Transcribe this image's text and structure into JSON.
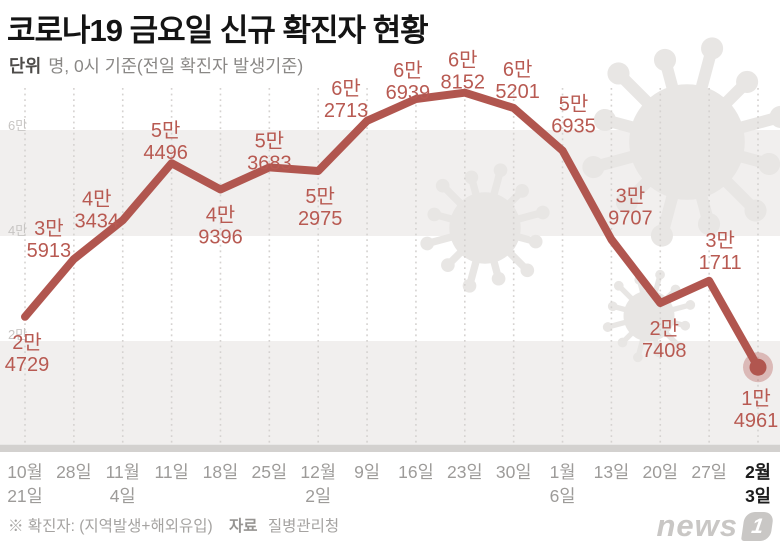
{
  "title": "코로나19 금요일 신규 확진자 현황",
  "subtitle": {
    "label": "단위",
    "text": "명, 0시 기준(전일 확진자 발생기준)"
  },
  "footer": {
    "note": "※ 확진자: (지역발생+해외유입)",
    "source_label": "자료",
    "source": "질병관리청"
  },
  "logo": {
    "text": "news",
    "badge": "1"
  },
  "colors": {
    "line": "#b1564f",
    "point_label": "#b85a52",
    "band": "#f1efee",
    "axis_strip": "#d3d1cf",
    "grid": "#d5d2d0",
    "y_tick": "#c7c5c3",
    "x_tick": "#9d9b99",
    "x_tick_active": "#1c1c1c",
    "watermark": "#e8e6e4"
  },
  "chart_data": {
    "type": "line",
    "title": "코로나19 금요일 신규 확진자 현황",
    "unit": "명",
    "basis": "0시 기준(전일 확진자 발생기준)",
    "x": [
      [
        "10월",
        "21일"
      ],
      [
        "28일"
      ],
      [
        "11월",
        "4일"
      ],
      [
        "11일"
      ],
      [
        "18일"
      ],
      [
        "25일"
      ],
      [
        "12월",
        "2일"
      ],
      [
        "9일"
      ],
      [
        "16일"
      ],
      [
        "23일"
      ],
      [
        "30일"
      ],
      [
        "1월",
        "6일"
      ],
      [
        "13일"
      ],
      [
        "20일"
      ],
      [
        "27일"
      ],
      [
        "2월",
        "3일"
      ]
    ],
    "values": [
      24729,
      35913,
      43434,
      54496,
      49396,
      53683,
      52975,
      62713,
      66939,
      68152,
      65201,
      56935,
      39707,
      27408,
      31711,
      14961
    ],
    "point_labels": [
      [
        "2만",
        "4729"
      ],
      [
        "3만",
        "5913"
      ],
      [
        "4만",
        "3434"
      ],
      [
        "5만",
        "4496"
      ],
      [
        "4만",
        "9396"
      ],
      [
        "5만",
        "3683"
      ],
      [
        "5만",
        "2975"
      ],
      [
        "6만",
        "2713"
      ],
      [
        "6만",
        "6939"
      ],
      [
        "6만",
        "8152"
      ],
      [
        "6만",
        "5201"
      ],
      [
        "5만",
        "6935"
      ],
      [
        "3만",
        "9707"
      ],
      [
        "2만",
        "7408"
      ],
      [
        "3만",
        "1711"
      ],
      [
        "1만",
        "4961"
      ]
    ],
    "y_ticks": [
      {
        "label": "6만",
        "value": 60000
      },
      {
        "label": "4만",
        "value": 40000
      },
      {
        "label": "2만",
        "value": 20000
      }
    ],
    "ylim": [
      0,
      70000
    ],
    "grid": "dashed-vertical",
    "legend": "none",
    "highlight_last_point": true
  }
}
